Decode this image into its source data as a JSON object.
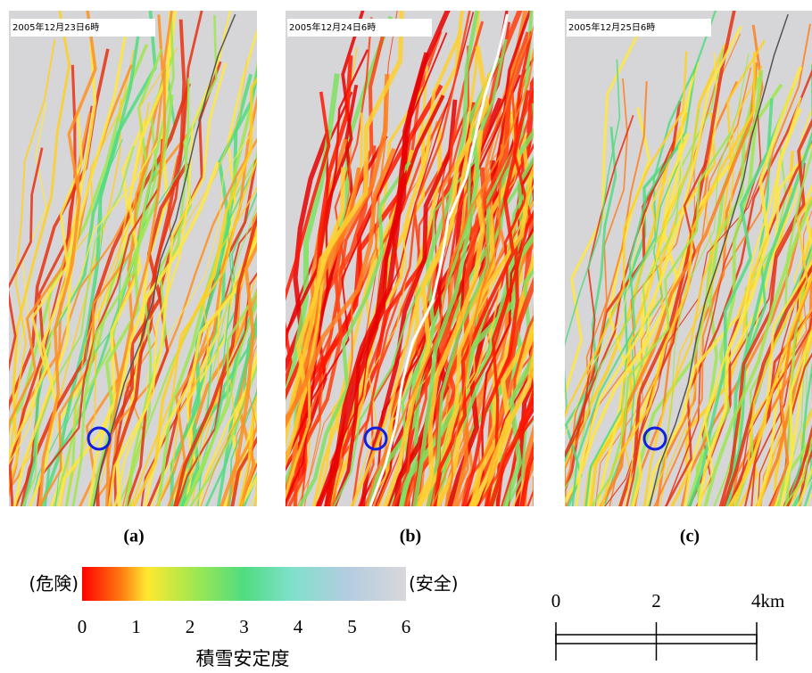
{
  "panels": [
    {
      "timestamp": "2005年12月23日6時",
      "label": "(a)"
    },
    {
      "timestamp": "2005年12月24日6時",
      "label": "(b)"
    },
    {
      "timestamp": "2005年12月25日6時",
      "label": "(c)"
    }
  ],
  "colorbar": {
    "left_label": "(危険)",
    "right_label": "(安全)",
    "range": [
      0,
      6
    ],
    "ticks": [
      0,
      1,
      2,
      3,
      4,
      5,
      6
    ],
    "title": "積雪安定度"
  },
  "scale_bar": {
    "range": [
      0,
      4
    ],
    "ticks": [
      {
        "value": 0,
        "label": "0"
      },
      {
        "value": 2,
        "label": "2"
      },
      {
        "value": 4,
        "label": "4km"
      }
    ]
  }
}
